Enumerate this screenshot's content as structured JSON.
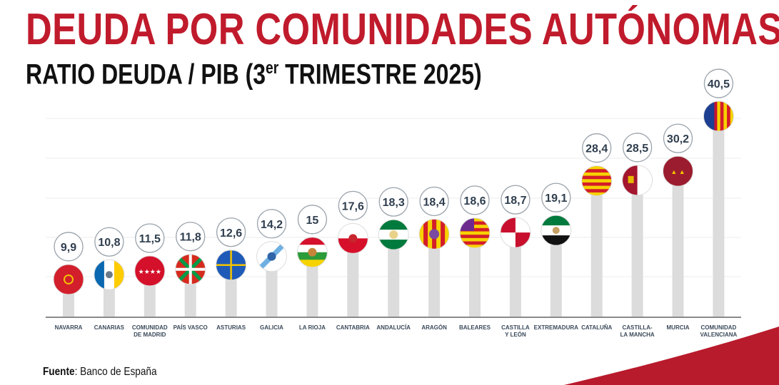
{
  "header": {
    "title": "DEUDA POR COMUNIDADES AUTÓNOMAS",
    "subtitle_pre": "RATIO DEUDA / PIB (3",
    "subtitle_sup": "er",
    "subtitle_post": " TRIMESTRE 2025)"
  },
  "footer": {
    "source_label": "Fuente",
    "source_text": ": Banco de España"
  },
  "colors": {
    "accent": "#c01b2c",
    "bar": "#dcdcdc",
    "label": "#3b4a5a"
  },
  "chart_data": {
    "type": "bar",
    "title": "RATIO DEUDA / PIB (3er TRIMESTRE 2025)",
    "categories": [
      [
        "NAVARRA"
      ],
      [
        "CANARIAS"
      ],
      [
        "COMUNIDAD",
        "DE MADRID"
      ],
      [
        "PAÍS VASCO"
      ],
      [
        "ASTURIAS"
      ],
      [
        "GALICIA"
      ],
      [
        "LA RIOJA"
      ],
      [
        "CANTABRIA"
      ],
      [
        "ANDALUCÍA"
      ],
      [
        "ARAGÓN"
      ],
      [
        "BALEARES"
      ],
      [
        "CASTILLA",
        "Y LEÓN"
      ],
      [
        "EXTREMADURA"
      ],
      [
        "CATALUÑA"
      ],
      [
        "CASTILLA-",
        "LA MANCHA"
      ],
      [
        "MURCIA"
      ],
      [
        "COMUNIDAD",
        "VALENCIANA"
      ]
    ],
    "values": [
      9.9,
      10.8,
      11.5,
      11.8,
      12.6,
      14.2,
      15,
      17.6,
      18.3,
      18.4,
      18.6,
      18.7,
      19.1,
      28.4,
      28.5,
      30.2,
      40.5
    ],
    "value_labels": [
      "9,9",
      "10,8",
      "11,5",
      "11,8",
      "12,6",
      "14,2",
      "15",
      "17,6",
      "18,3",
      "18,4",
      "18,6",
      "18,7",
      "19,1",
      "28,4",
      "28,5",
      "30,2",
      "40,5"
    ],
    "flags": [
      "navarra",
      "canarias",
      "madrid",
      "pais-vasco",
      "asturias",
      "galicia",
      "la-rioja",
      "cantabria",
      "andalucia",
      "aragon",
      "baleares",
      "castilla-leon",
      "extremadura",
      "cataluna",
      "castilla-la-mancha",
      "murcia",
      "valencia"
    ],
    "grid": true,
    "xlabel": "",
    "ylabel": ""
  }
}
